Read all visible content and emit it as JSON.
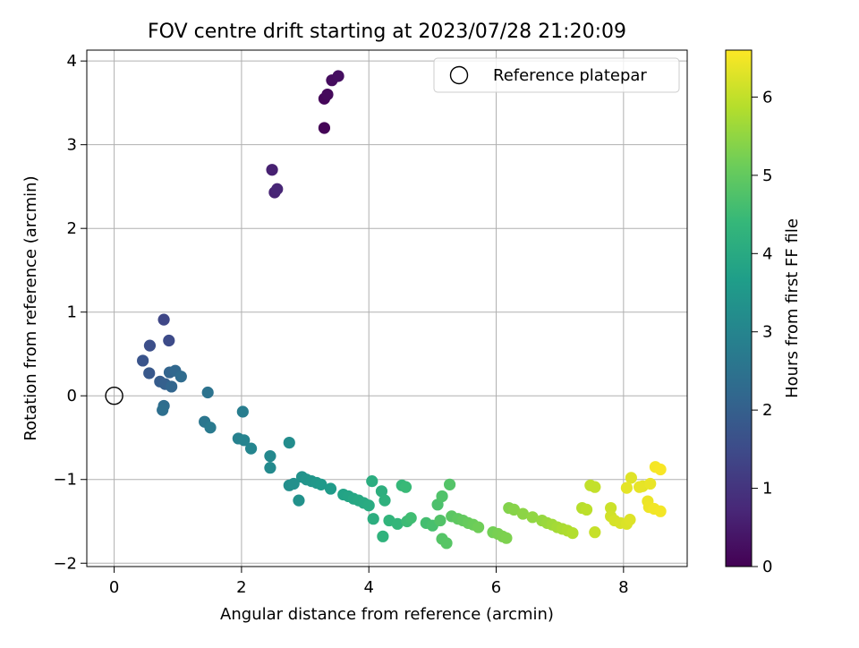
{
  "chart_data": {
    "type": "scatter",
    "title": "FOV centre drift starting at 2023/07/28 21:20:09",
    "xlabel": "Angular distance from reference (arcmin)",
    "ylabel": "Rotation from reference (arcmin)",
    "xlim": [
      -0.43,
      9.0
    ],
    "ylim": [
      -2.04,
      4.13
    ],
    "xticks": [
      0,
      2,
      4,
      6,
      8
    ],
    "yticks": [
      -2,
      -1,
      0,
      1,
      2,
      3,
      4
    ],
    "xtick_labels": [
      "0",
      "2",
      "4",
      "6",
      "8"
    ],
    "ytick_labels": [
      "−2",
      "−1",
      "0",
      "1",
      "2",
      "3",
      "4"
    ],
    "grid": true,
    "legend": {
      "placement": "top-right",
      "label": "Reference platepar"
    },
    "reference_point": {
      "x": 0,
      "y": 0
    },
    "colorbar": {
      "label": "Hours from first FF file",
      "range": [
        0,
        6.6
      ],
      "ticks": [
        0,
        1,
        2,
        3,
        4,
        5,
        6
      ],
      "tick_labels": [
        "0",
        "1",
        "2",
        "3",
        "4",
        "5",
        "6"
      ],
      "colormap": "viridis"
    },
    "series": [
      {
        "points": [
          [
            3.3,
            3.2,
            0.05
          ],
          [
            3.3,
            3.55,
            0.1
          ],
          [
            3.35,
            3.6,
            0.15
          ],
          [
            3.42,
            3.77,
            0.2
          ],
          [
            3.52,
            3.82,
            0.25
          ],
          [
            2.48,
            2.7,
            0.6
          ],
          [
            2.52,
            2.43,
            0.65
          ],
          [
            2.56,
            2.47,
            0.7
          ],
          [
            0.78,
            0.91,
            1.4
          ],
          [
            0.86,
            0.66,
            1.5
          ],
          [
            0.56,
            0.6,
            1.6
          ],
          [
            0.45,
            0.42,
            1.7
          ],
          [
            0.55,
            0.27,
            1.8
          ],
          [
            0.72,
            0.17,
            1.9
          ],
          [
            0.8,
            0.14,
            2.0
          ],
          [
            0.87,
            0.28,
            2.1
          ],
          [
            0.9,
            0.11,
            2.15
          ],
          [
            0.96,
            0.3,
            2.2
          ],
          [
            1.05,
            0.23,
            2.3
          ],
          [
            0.78,
            -0.12,
            2.35
          ],
          [
            0.76,
            -0.17,
            2.4
          ],
          [
            1.47,
            0.04,
            2.5
          ],
          [
            1.42,
            -0.31,
            2.6
          ],
          [
            1.51,
            -0.38,
            2.7
          ],
          [
            2.02,
            -0.19,
            2.8
          ],
          [
            1.95,
            -0.51,
            2.9
          ],
          [
            2.04,
            -0.53,
            2.95
          ],
          [
            2.15,
            -0.63,
            3.0
          ],
          [
            2.45,
            -0.72,
            3.1
          ],
          [
            2.45,
            -0.86,
            3.15
          ],
          [
            2.75,
            -0.56,
            3.2
          ],
          [
            2.75,
            -1.07,
            3.25
          ],
          [
            2.82,
            -1.05,
            3.3
          ],
          [
            2.9,
            -1.25,
            3.32
          ],
          [
            2.95,
            -0.97,
            3.35
          ],
          [
            3.02,
            -1.0,
            3.4
          ],
          [
            3.1,
            -1.02,
            3.45
          ],
          [
            3.18,
            -1.04,
            3.5
          ],
          [
            3.25,
            -1.06,
            3.55
          ],
          [
            3.4,
            -1.11,
            3.6
          ],
          [
            3.6,
            -1.18,
            3.8
          ],
          [
            3.68,
            -1.2,
            3.85
          ],
          [
            3.76,
            -1.23,
            3.9
          ],
          [
            3.84,
            -1.25,
            3.95
          ],
          [
            3.92,
            -1.28,
            4.0
          ],
          [
            4.0,
            -1.31,
            4.05
          ],
          [
            4.05,
            -1.02,
            4.1
          ],
          [
            4.07,
            -1.47,
            4.12
          ],
          [
            4.2,
            -1.14,
            4.15
          ],
          [
            4.25,
            -1.25,
            4.2
          ],
          [
            4.22,
            -1.68,
            4.25
          ],
          [
            4.32,
            -1.49,
            4.3
          ],
          [
            4.45,
            -1.53,
            4.35
          ],
          [
            4.52,
            -1.07,
            4.4
          ],
          [
            4.58,
            -1.09,
            4.45
          ],
          [
            4.6,
            -1.5,
            4.5
          ],
          [
            4.66,
            -1.46,
            4.55
          ],
          [
            4.9,
            -1.52,
            4.6
          ],
          [
            5.0,
            -1.55,
            4.65
          ],
          [
            5.08,
            -1.3,
            4.7
          ],
          [
            5.15,
            -1.2,
            4.75
          ],
          [
            5.12,
            -1.49,
            4.78
          ],
          [
            5.27,
            -1.06,
            4.8
          ],
          [
            5.15,
            -1.71,
            4.82
          ],
          [
            5.22,
            -1.76,
            4.85
          ],
          [
            5.3,
            -1.44,
            4.9
          ],
          [
            5.4,
            -1.47,
            4.95
          ],
          [
            5.48,
            -1.49,
            5.0
          ],
          [
            5.56,
            -1.52,
            5.05
          ],
          [
            5.64,
            -1.54,
            5.1
          ],
          [
            5.72,
            -1.57,
            5.15
          ],
          [
            5.95,
            -1.63,
            5.2
          ],
          [
            6.03,
            -1.65,
            5.25
          ],
          [
            6.1,
            -1.68,
            5.28
          ],
          [
            6.16,
            -1.7,
            5.3
          ],
          [
            6.2,
            -1.34,
            5.35
          ],
          [
            6.28,
            -1.36,
            5.4
          ],
          [
            6.42,
            -1.41,
            5.45
          ],
          [
            6.57,
            -1.45,
            5.5
          ],
          [
            6.72,
            -1.49,
            5.55
          ],
          [
            6.8,
            -1.52,
            5.6
          ],
          [
            6.88,
            -1.54,
            5.65
          ],
          [
            6.96,
            -1.57,
            5.7
          ],
          [
            7.04,
            -1.59,
            5.75
          ],
          [
            7.12,
            -1.61,
            5.8
          ],
          [
            7.2,
            -1.64,
            5.85
          ],
          [
            7.35,
            -1.34,
            5.9
          ],
          [
            7.42,
            -1.36,
            5.95
          ],
          [
            7.48,
            -1.07,
            6.0
          ],
          [
            7.55,
            -1.09,
            6.02
          ],
          [
            7.55,
            -1.63,
            6.05
          ],
          [
            7.8,
            -1.34,
            6.1
          ],
          [
            7.8,
            -1.44,
            6.15
          ],
          [
            7.86,
            -1.49,
            6.2
          ],
          [
            7.95,
            -1.52,
            6.22
          ],
          [
            8.05,
            -1.53,
            6.25
          ],
          [
            8.1,
            -1.48,
            6.28
          ],
          [
            8.12,
            -0.98,
            6.3
          ],
          [
            8.3,
            -1.08,
            6.33
          ],
          [
            8.05,
            -1.1,
            6.35
          ],
          [
            8.25,
            -1.09,
            6.38
          ],
          [
            8.42,
            -1.05,
            6.4
          ],
          [
            8.38,
            -1.26,
            6.42
          ],
          [
            8.4,
            -1.33,
            6.45
          ],
          [
            8.48,
            -1.35,
            6.48
          ],
          [
            8.58,
            -1.38,
            6.5
          ],
          [
            8.5,
            -0.85,
            6.52
          ],
          [
            8.58,
            -0.88,
            6.55
          ]
        ]
      }
    ]
  }
}
